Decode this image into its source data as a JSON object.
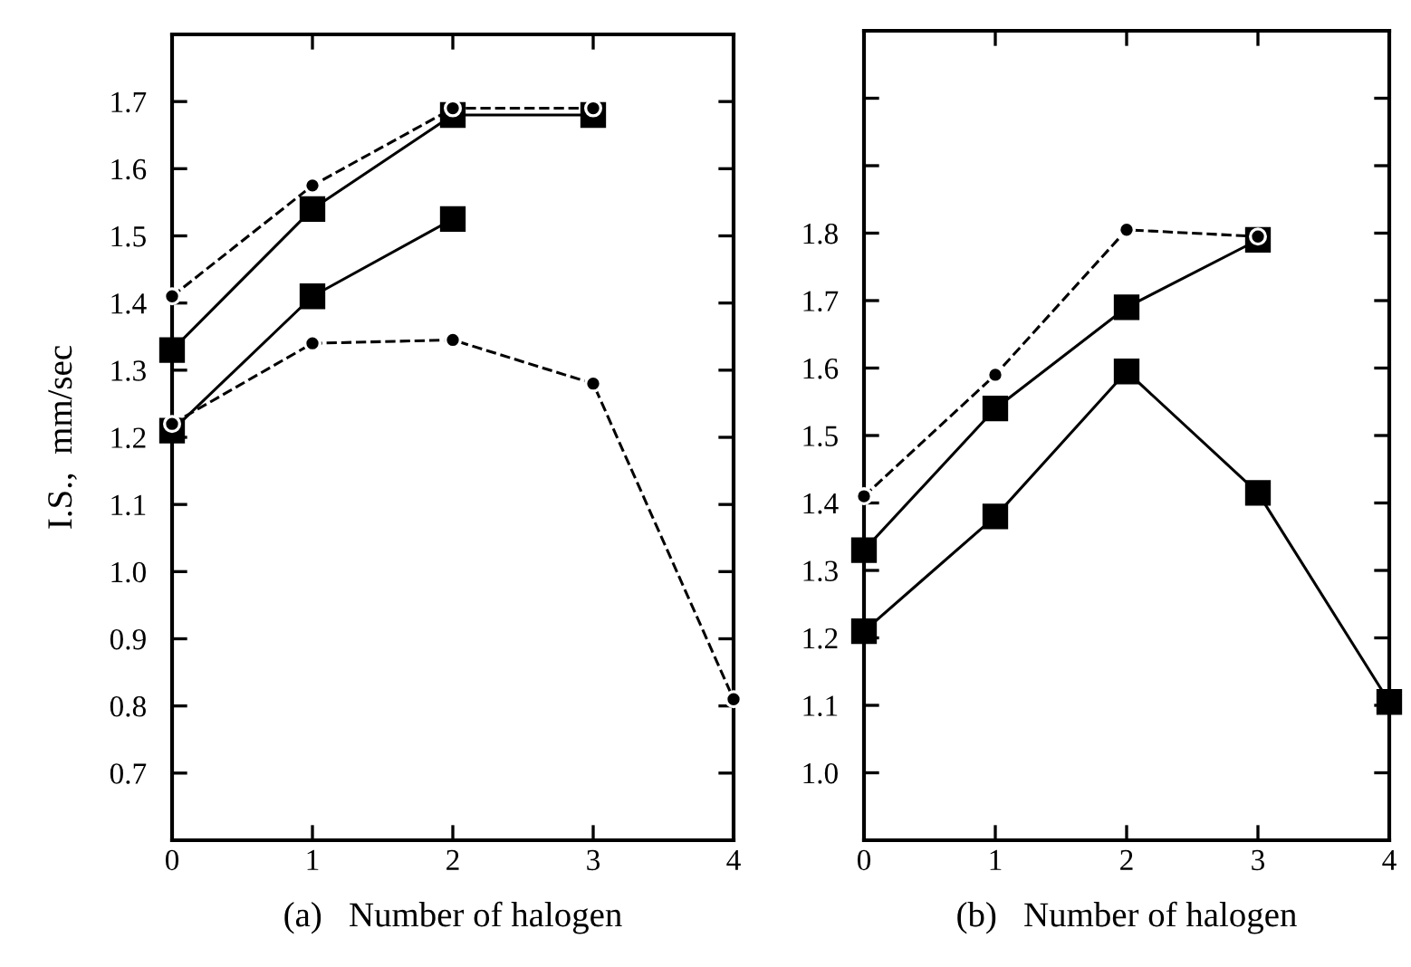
{
  "chart_data": [
    {
      "type": "line",
      "xlabel": "(a)   Number of halogen",
      "ylabel": "I.S.,  mm/sec",
      "xlim": [
        0,
        4
      ],
      "ylim": [
        0.6,
        1.8
      ],
      "xticks": [
        0,
        1,
        2,
        3,
        4
      ],
      "yticks": [
        0.7,
        0.8,
        0.9,
        {
          "value": 1.0,
          "label": "1.0"
        },
        1.1,
        1.2,
        1.3,
        1.4,
        1.5,
        1.6,
        1.7
      ],
      "grid": false,
      "legend": false,
      "series": [
        {
          "color": "#000000",
          "marker": "circle",
          "line_style": "dashed",
          "x": [
            0,
            1,
            2,
            3
          ],
          "values": [
            1.41,
            1.575,
            1.69,
            1.69
          ]
        },
        {
          "color": "#000000",
          "marker": "square",
          "line_style": "solid",
          "x": [
            0,
            1,
            2,
            3
          ],
          "values": [
            1.33,
            1.54,
            1.68,
            1.68
          ]
        },
        {
          "color": "#000000",
          "marker": "square",
          "line_style": "solid",
          "x": [
            0,
            1,
            2
          ],
          "values": [
            1.21,
            1.41,
            1.525
          ]
        },
        {
          "color": "#000000",
          "marker": "circle",
          "line_style": "dashed",
          "x": [
            0,
            1,
            2,
            3,
            4
          ],
          "values": [
            1.22,
            1.34,
            1.345,
            1.28,
            0.81
          ]
        }
      ]
    },
    {
      "type": "line",
      "xlabel": "(b)   Number of halogen",
      "xlim": [
        0,
        4
      ],
      "ylim": [
        0.9,
        2.1
      ],
      "xticks": [
        0,
        1,
        2,
        3,
        4
      ],
      "yticks": [
        {
          "value": 1.0,
          "label": "1.0"
        },
        1.1,
        1.2,
        1.3,
        1.4,
        1.5,
        1.6,
        1.7,
        1.8,
        {
          "value": 1.9,
          "label": null
        },
        {
          "value": 2.0,
          "label": null
        }
      ],
      "grid": false,
      "legend": false,
      "series": [
        {
          "color": "#000000",
          "marker": "circle",
          "line_style": "dashed",
          "x": [
            0,
            1,
            2,
            3
          ],
          "values": [
            1.41,
            1.59,
            1.805,
            1.795
          ]
        },
        {
          "color": "#000000",
          "marker": "square",
          "line_style": "solid",
          "x": [
            0,
            1,
            2,
            3
          ],
          "values": [
            1.33,
            1.54,
            1.69,
            1.79
          ]
        },
        {
          "color": "#000000",
          "marker": "square",
          "line_style": "solid",
          "x": [
            0,
            1,
            2,
            3,
            4
          ],
          "values": [
            1.21,
            1.38,
            1.595,
            1.415,
            1.105
          ]
        }
      ]
    }
  ]
}
